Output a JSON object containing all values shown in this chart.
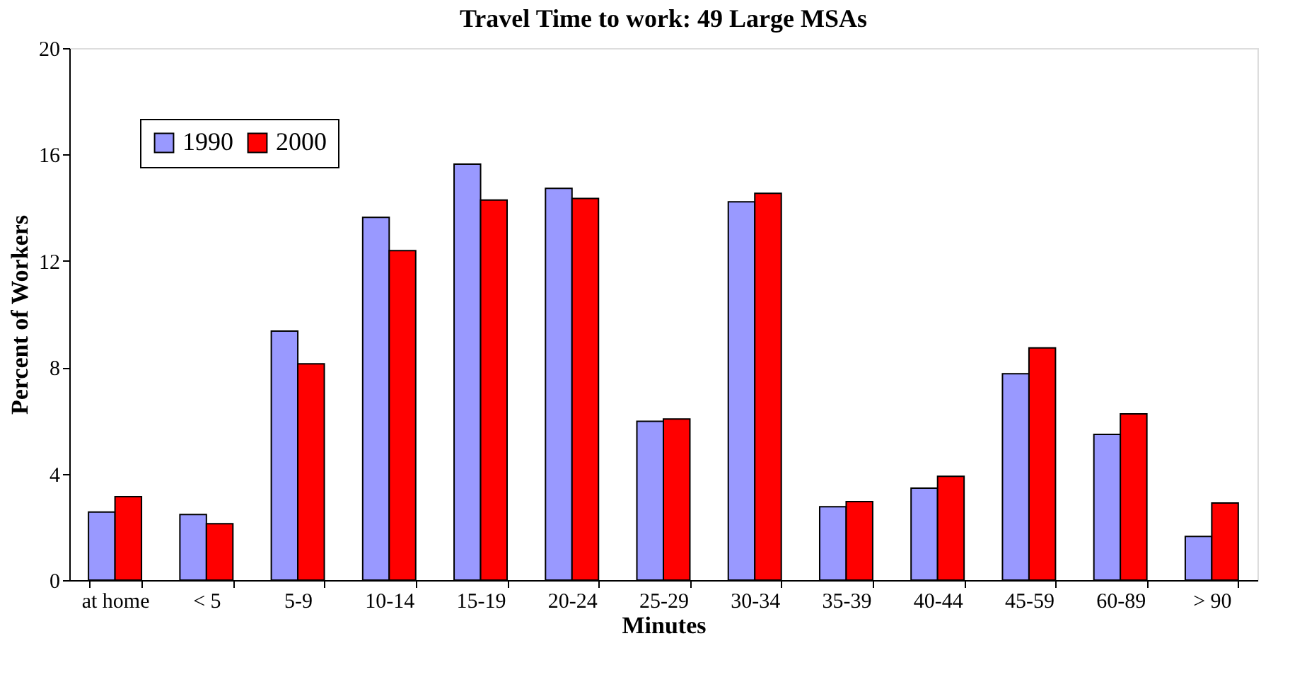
{
  "chart_data": {
    "type": "bar",
    "title": "Travel Time to work: 49 Large MSAs",
    "xlabel": "Minutes",
    "ylabel": "Percent of Workers",
    "categories": [
      "at home",
      "< 5",
      "5-9",
      "10-14",
      "15-19",
      "20-24",
      "25-29",
      "30-34",
      "35-39",
      "40-44",
      "45-59",
      "60-89",
      "> 90"
    ],
    "series": [
      {
        "name": "1990",
        "color": "#9999ff",
        "values": [
          2.56,
          2.47,
          9.36,
          13.64,
          15.64,
          14.73,
          5.97,
          14.22,
          2.76,
          3.46,
          7.76,
          5.48,
          1.64
        ]
      },
      {
        "name": "2000",
        "color": "#ff0000",
        "values": [
          3.14,
          2.12,
          8.13,
          12.39,
          14.29,
          14.35,
          6.06,
          14.54,
          2.95,
          3.9,
          8.73,
          6.25,
          2.9
        ]
      }
    ],
    "ylim": [
      0,
      20
    ],
    "yticks": [
      0,
      4,
      8,
      12,
      16,
      20
    ],
    "grid": false,
    "legend": "top left"
  }
}
